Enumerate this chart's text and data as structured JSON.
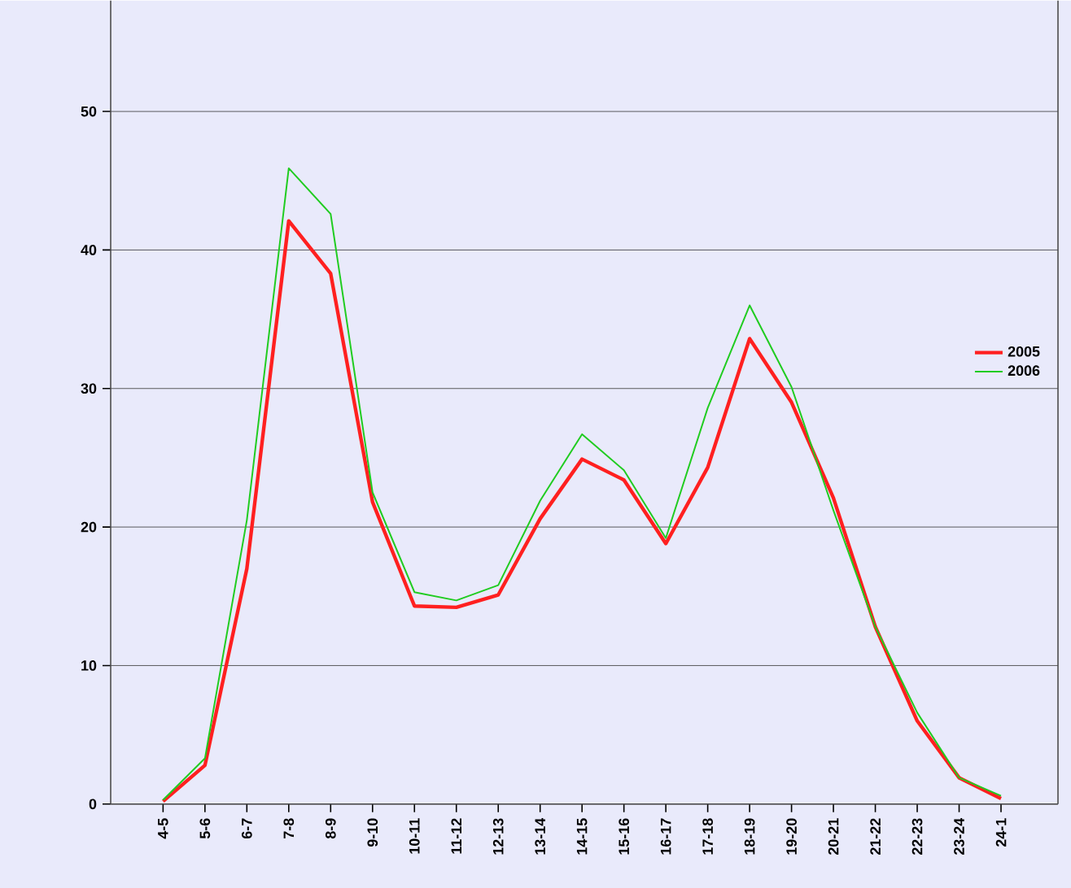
{
  "chart_data": {
    "type": "line",
    "categories": [
      "4-5",
      "5-6",
      "6-7",
      "7-8",
      "8-9",
      "9-10",
      "10-11",
      "11-12",
      "12-13",
      "13-14",
      "14-15",
      "15-16",
      "16-17",
      "17-18",
      "18-19",
      "19-20",
      "20-21",
      "21-22",
      "22-23",
      "23-24",
      "24-1"
    ],
    "series": [
      {
        "name": "2005",
        "color": "#ff2020",
        "values": [
          0.2,
          2.8,
          17,
          42.1,
          38.3,
          21.8,
          14.3,
          14.2,
          15.1,
          20.6,
          24.9,
          23.4,
          18.8,
          24.3,
          33.6,
          29,
          22.1,
          12.8,
          6,
          1.9,
          0.4
        ]
      },
      {
        "name": "2006",
        "color": "#20cc20",
        "values": [
          0.3,
          3.3,
          20.5,
          45.9,
          42.6,
          22.5,
          15.3,
          14.7,
          15.8,
          21.9,
          26.7,
          24.1,
          19.2,
          28.6,
          36,
          30.1,
          21.2,
          12.8,
          6.6,
          1.9,
          0.6
        ]
      }
    ],
    "ylim": [
      0,
      58
    ],
    "yticks": [
      0,
      10,
      20,
      30,
      40,
      50
    ],
    "grid": "y",
    "legend": "right",
    "marker": "none",
    "line_style": "solid"
  }
}
